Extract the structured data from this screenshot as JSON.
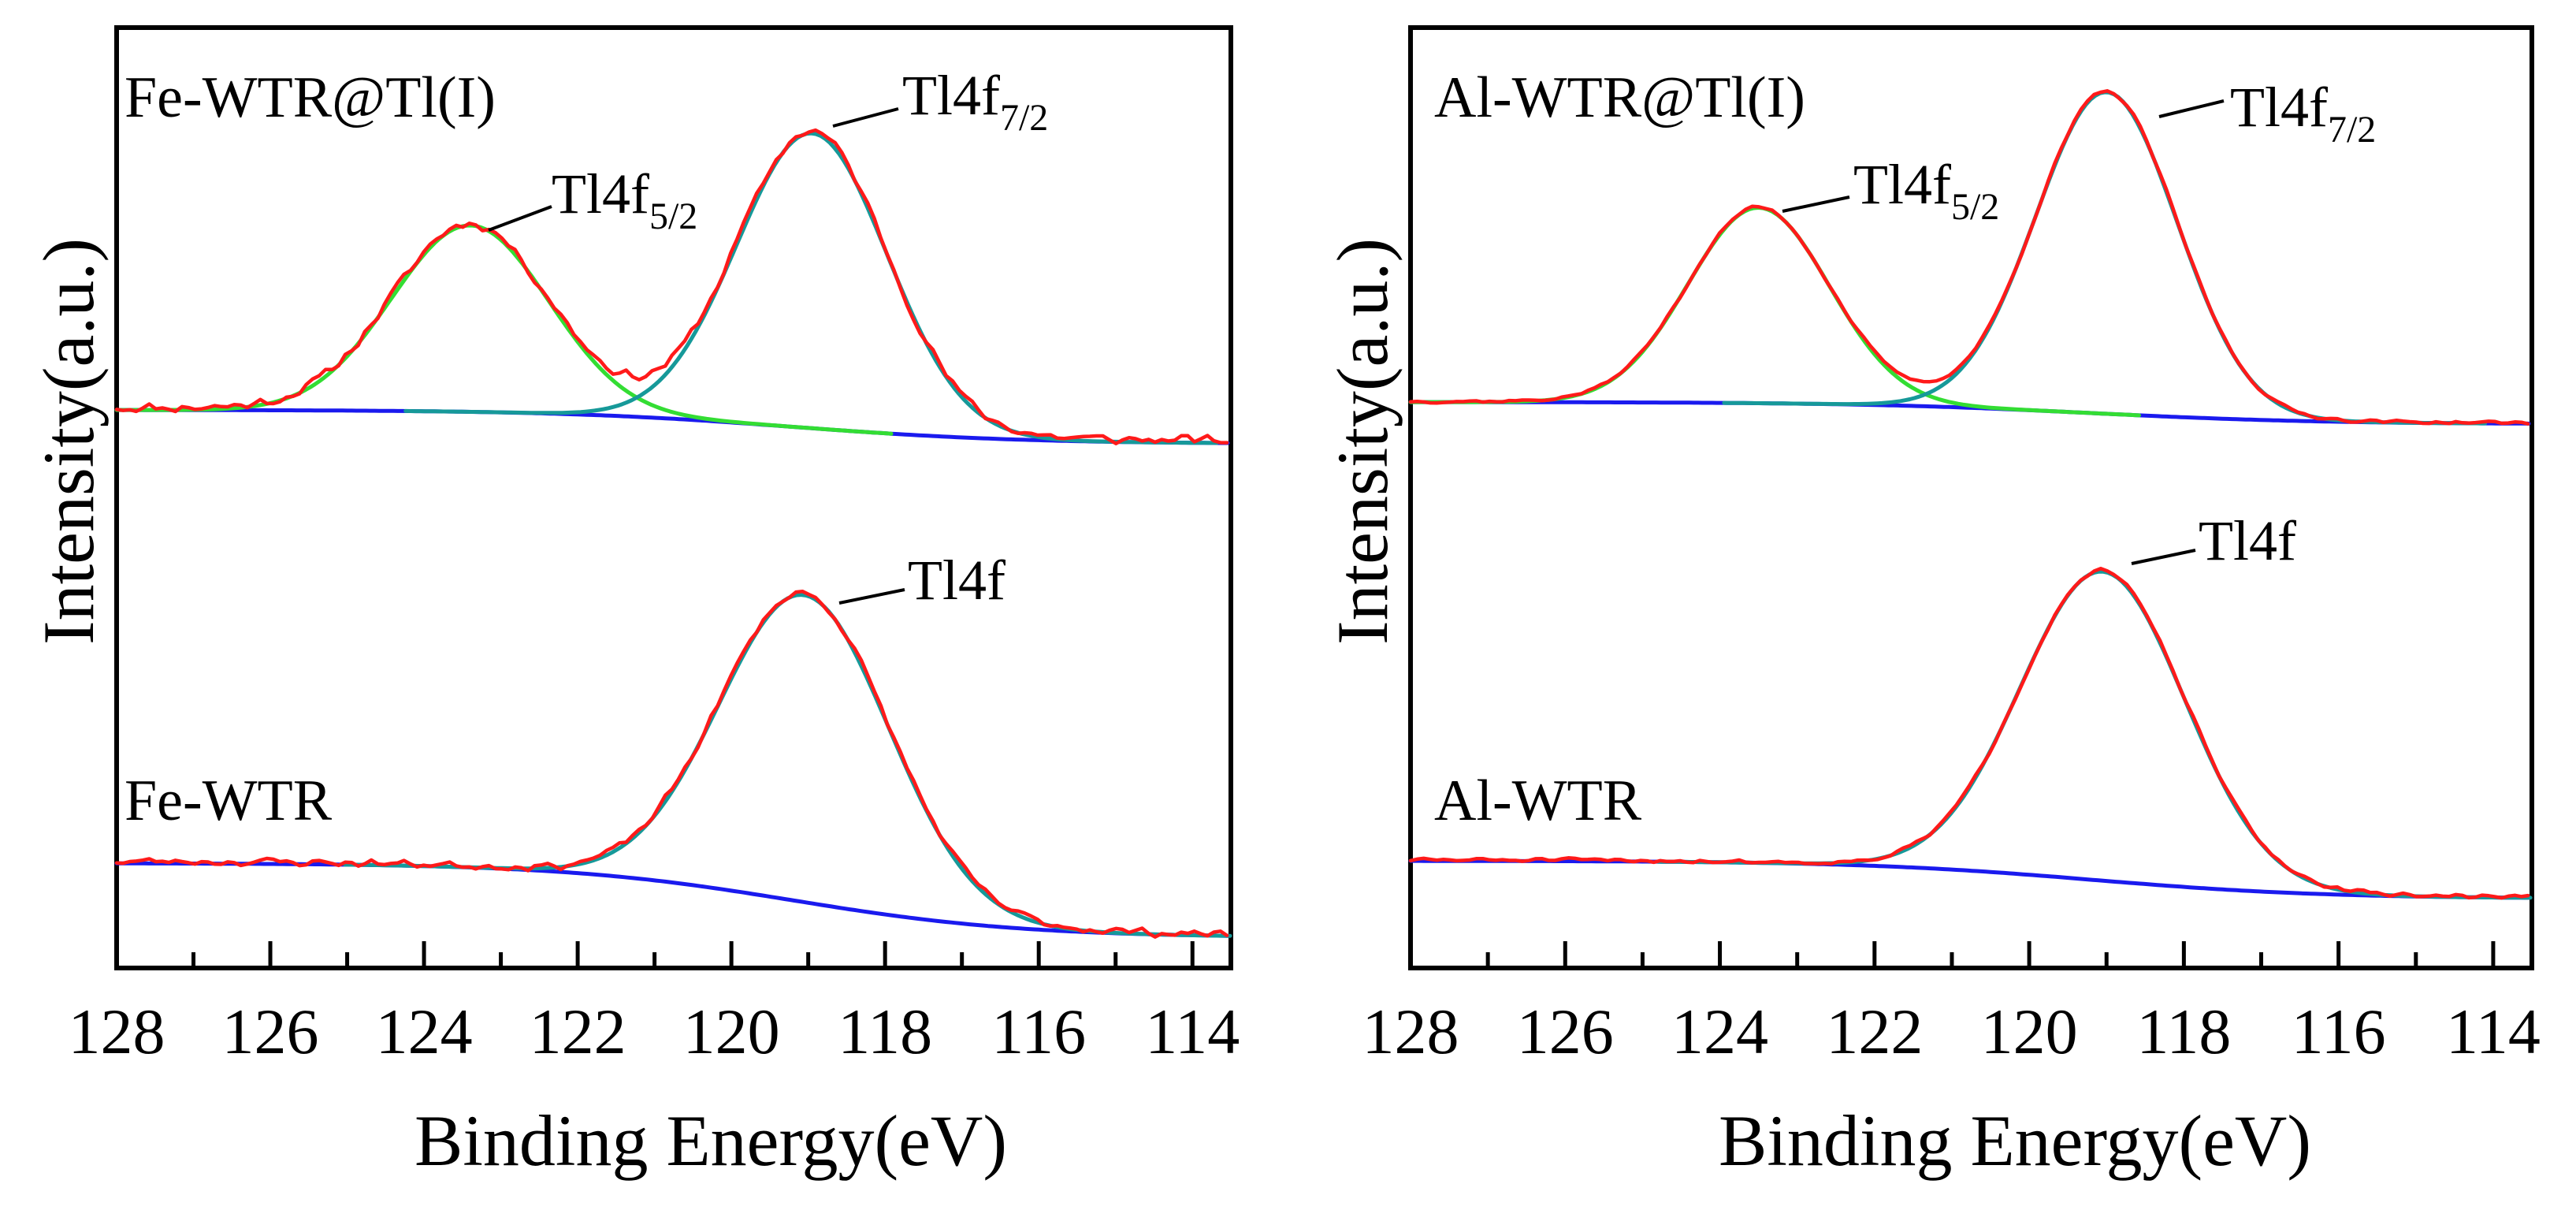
{
  "colors": {
    "raw": "#ff1a1a",
    "fit_f52": "#33dd33",
    "fit_f72": "#169999",
    "background": "#1a1aee"
  },
  "chart_data": [
    {
      "type": "line",
      "xlabel": "Binding Energy(eV)",
      "ylabel": "Intensity(a.u.)",
      "xlim": [
        128,
        113.5
      ],
      "x_reversed": true,
      "xticks": [
        128,
        126,
        124,
        122,
        120,
        118,
        116,
        114
      ],
      "y_ticks_shown": false,
      "spectra": [
        {
          "label": "Fe-WTR@Tl(I)",
          "noise": 0.018,
          "seed": 11,
          "peaks": [
            {
              "label_main": "Tl4f",
              "label_sub": "5/2",
              "center": 123.4,
              "height": 0.55,
              "fwhm": 2.4,
              "fit": "f52"
            },
            {
              "label_main": "Tl4f",
              "label_sub": "7/2",
              "center": 118.95,
              "height": 0.87,
              "fwhm": 2.3,
              "fit": "f72"
            }
          ],
          "baseline": {
            "high_be": 0.0,
            "low_be": -0.1,
            "step_center": 119.2,
            "step_width": 1.5
          }
        },
        {
          "label": "Fe-WTR",
          "noise": 0.015,
          "seed": 23,
          "peaks": [
            {
              "label_main": "Tl4f",
              "label_sub": "",
              "center": 119.05,
              "height": 0.95,
              "fwhm": 2.6,
              "fit": "f72"
            }
          ],
          "baseline": {
            "high_be": 0.0,
            "low_be": -0.23,
            "step_center": 119.2,
            "step_width": 1.5
          }
        },
        {
          "label": "Al-WTR@Tl(I)",
          "noise": 0.006,
          "seed": 37,
          "peaks": [
            {
              "label_main": "Tl4f",
              "label_sub": "5/2",
              "center": 123.5,
              "height": 0.62,
              "fwhm": 2.15,
              "fit": "f52"
            },
            {
              "label_main": "Tl4f",
              "label_sub": "7/2",
              "center": 119.0,
              "height": 1.02,
              "fwhm": 2.15,
              "fit": "f72"
            }
          ],
          "baseline": {
            "high_be": 0.0,
            "low_be": -0.07,
            "step_center": 119.2,
            "step_width": 1.5
          }
        },
        {
          "label": "Al-WTR",
          "noise": 0.008,
          "seed": 51,
          "peaks": [
            {
              "label_main": "Tl4f",
              "label_sub": "",
              "center": 119.05,
              "height": 0.98,
              "fwhm": 2.5,
              "fit": "f72"
            }
          ],
          "baseline": {
            "high_be": 0.0,
            "low_be": -0.12,
            "step_center": 119.2,
            "step_width": 1.5
          }
        }
      ]
    }
  ]
}
